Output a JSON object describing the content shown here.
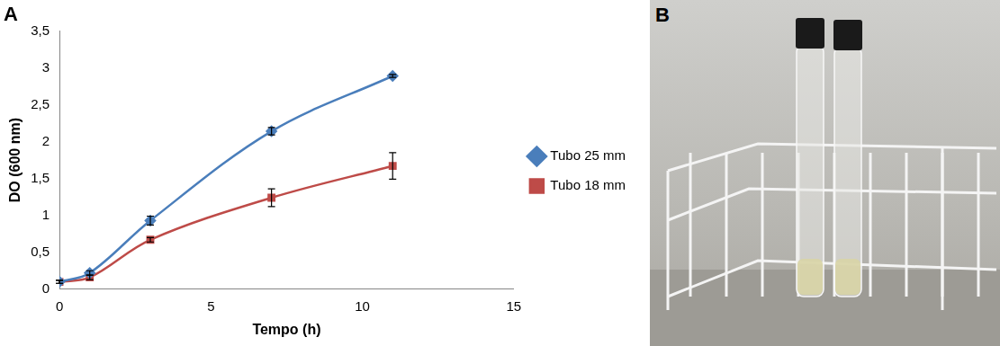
{
  "chart_data": {
    "type": "line",
    "title": "A",
    "x_label": "Tempo (h)",
    "y_label": "DO (600 nm)",
    "xlim": [
      0,
      15
    ],
    "xticks": [
      0,
      5,
      10,
      15
    ],
    "ylim": [
      0,
      3.5
    ],
    "yticks": [
      0,
      {
        "value": 0.5,
        "label": "0,5"
      },
      1,
      {
        "value": 1.5,
        "label": "1,5"
      },
      2,
      {
        "value": 2.5,
        "label": "2,5"
      },
      3,
      {
        "value": 3.5,
        "label": "3,5"
      }
    ],
    "grid": false,
    "legend": "right",
    "x": [
      0,
      1,
      3,
      7,
      11
    ],
    "series": [
      {
        "name": "Tubo 25 mm",
        "color": "#4a7ebb",
        "marker": "diamond",
        "values": [
          0.1,
          0.22,
          0.93,
          2.14,
          2.89
        ],
        "errors": [
          0.02,
          0.03,
          0.06,
          0.05,
          0.02
        ]
      },
      {
        "name": "Tubo 18 mm",
        "color": "#be4b48",
        "marker": "square",
        "values": [
          0.1,
          0.16,
          0.67,
          1.24,
          1.67
        ],
        "errors": [
          0.02,
          0.03,
          0.03,
          0.12,
          0.18
        ]
      }
    ]
  },
  "photo_panel": {
    "label": "B"
  }
}
